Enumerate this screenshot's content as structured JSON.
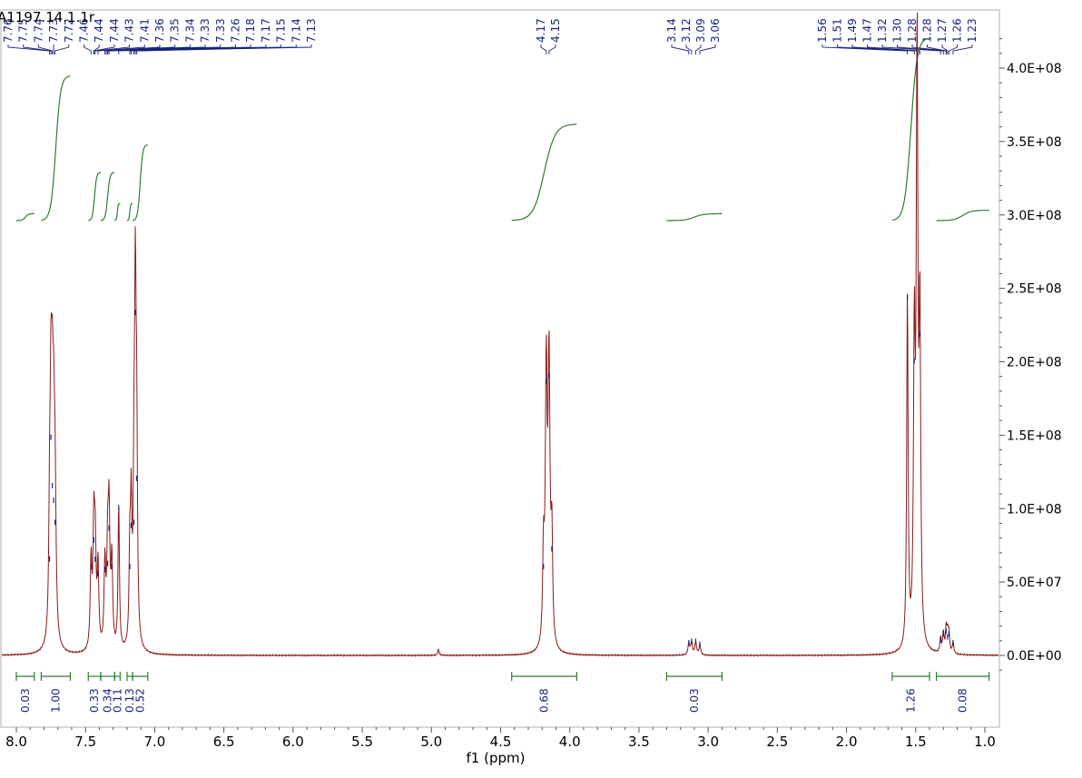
{
  "chart_data": {
    "type": "line",
    "title": "A1197.14.1.1r",
    "xlabel": "f1 (ppm)",
    "ylabel": "",
    "xlim": [
      8.1,
      0.9
    ],
    "ylim": [
      -20000000,
      430000000
    ],
    "x_ticks": [
      "8.0",
      "7.5",
      "7.0",
      "6.5",
      "6.0",
      "5.5",
      "5.0",
      "4.5",
      "4.0",
      "3.5",
      "3.0",
      "2.5",
      "2.0",
      "1.5",
      "1.0"
    ],
    "y_ticks": [
      "0.0E+00",
      "5.0E+07",
      "1.0E+08",
      "1.5E+08",
      "2.0E+08",
      "2.5E+08",
      "3.0E+08",
      "3.5E+08",
      "4.0E+08"
    ],
    "y_tick_values": [
      0,
      50000000,
      100000000,
      150000000,
      200000000,
      250000000,
      300000000,
      350000000,
      400000000
    ],
    "line_color": "#8b1a1a",
    "integral_color": "#2e7d32",
    "peak_label_color": "#1a237e",
    "peaks": [
      {
        "ppm": 7.76,
        "height": 65000000,
        "width": 0.006
      },
      {
        "ppm": 7.75,
        "height": 148000000,
        "width": 0.008
      },
      {
        "ppm": 7.74,
        "height": 115000000,
        "width": 0.008
      },
      {
        "ppm": 7.73,
        "height": 105000000,
        "width": 0.008
      },
      {
        "ppm": 7.72,
        "height": 90000000,
        "width": 0.008
      },
      {
        "ppm": 7.46,
        "height": 60000000,
        "width": 0.007
      },
      {
        "ppm": 7.44,
        "height": 78000000,
        "width": 0.007
      },
      {
        "ppm": 7.43,
        "height": 65000000,
        "width": 0.007
      },
      {
        "ppm": 7.41,
        "height": 55000000,
        "width": 0.007
      },
      {
        "ppm": 7.36,
        "height": 58000000,
        "width": 0.007
      },
      {
        "ppm": 7.34,
        "height": 62000000,
        "width": 0.007
      },
      {
        "ppm": 7.33,
        "height": 86000000,
        "width": 0.007
      },
      {
        "ppm": 7.31,
        "height": 60000000,
        "width": 0.007
      },
      {
        "ppm": 7.26,
        "height": 100000000,
        "width": 0.006
      },
      {
        "ppm": 7.18,
        "height": 60000000,
        "width": 0.006
      },
      {
        "ppm": 7.17,
        "height": 88000000,
        "width": 0.006
      },
      {
        "ppm": 7.15,
        "height": 90000000,
        "width": 0.006
      },
      {
        "ppm": 7.14,
        "height": 233000000,
        "width": 0.007
      },
      {
        "ppm": 7.13,
        "height": 120000000,
        "width": 0.006
      },
      {
        "ppm": 4.95,
        "height": 4000000,
        "width": 0.006
      },
      {
        "ppm": 4.19,
        "height": 60000000,
        "width": 0.007
      },
      {
        "ppm": 4.17,
        "height": 186000000,
        "width": 0.008
      },
      {
        "ppm": 4.15,
        "height": 190000000,
        "width": 0.008
      },
      {
        "ppm": 4.13,
        "height": 72000000,
        "width": 0.007
      },
      {
        "ppm": 3.14,
        "height": 8000000,
        "width": 0.007
      },
      {
        "ppm": 3.12,
        "height": 9000000,
        "width": 0.007
      },
      {
        "ppm": 3.09,
        "height": 9000000,
        "width": 0.007
      },
      {
        "ppm": 3.06,
        "height": 7000000,
        "width": 0.007
      },
      {
        "ppm": 1.56,
        "height": 243000000,
        "width": 0.006
      },
      {
        "ppm": 1.51,
        "height": 200000000,
        "width": 0.007
      },
      {
        "ppm": 1.49,
        "height": 402000000,
        "width": 0.007
      },
      {
        "ppm": 1.47,
        "height": 218000000,
        "width": 0.007
      },
      {
        "ppm": 1.32,
        "height": 10000000,
        "width": 0.006
      },
      {
        "ppm": 1.3,
        "height": 14000000,
        "width": 0.006
      },
      {
        "ppm": 1.28,
        "height": 16000000,
        "width": 0.006
      },
      {
        "ppm": 1.27,
        "height": 12000000,
        "width": 0.006
      },
      {
        "ppm": 1.26,
        "height": 14000000,
        "width": 0.006
      },
      {
        "ppm": 1.23,
        "height": 8000000,
        "width": 0.006
      }
    ],
    "peak_labels": [
      "7.76",
      "7.75",
      "7.74",
      "7.73",
      "7.72",
      "7.46",
      "7.44",
      "7.44",
      "7.43",
      "7.41",
      "7.36",
      "7.35",
      "7.34",
      "7.33",
      "7.33",
      "7.26",
      "7.18",
      "7.17",
      "7.15",
      "7.14",
      "7.13",
      "4.17",
      "4.15",
      "3.14",
      "3.12",
      "3.09",
      "3.06",
      "1.56",
      "1.51",
      "1.49",
      "1.47",
      "1.32",
      "1.30",
      "1.28",
      "1.28",
      "1.27",
      "1.26",
      "1.23"
    ],
    "peak_label_ppm": [
      7.76,
      7.75,
      7.74,
      7.73,
      7.72,
      7.46,
      7.44,
      7.44,
      7.43,
      7.41,
      7.36,
      7.35,
      7.34,
      7.33,
      7.33,
      7.26,
      7.18,
      7.17,
      7.15,
      7.14,
      7.13,
      4.17,
      4.15,
      3.14,
      3.12,
      3.09,
      3.06,
      1.56,
      1.51,
      1.49,
      1.47,
      1.32,
      1.3,
      1.28,
      1.28,
      1.27,
      1.26,
      1.23
    ],
    "integrals": [
      {
        "start": 8.0,
        "end": 7.87,
        "value": "0.03",
        "rise": 0.02
      },
      {
        "start": 7.82,
        "end": 7.61,
        "value": "1.00",
        "rise": 0.42
      },
      {
        "start": 7.48,
        "end": 7.39,
        "value": "0.33",
        "rise": 0.14
      },
      {
        "start": 7.39,
        "end": 7.29,
        "value": "0.34",
        "rise": 0.14
      },
      {
        "start": 7.29,
        "end": 7.25,
        "value": "0.11",
        "rise": 0.05
      },
      {
        "start": 7.2,
        "end": 7.16,
        "value": "0.13",
        "rise": 0.05
      },
      {
        "start": 7.16,
        "end": 7.05,
        "value": "0.52",
        "rise": 0.22
      },
      {
        "start": 4.42,
        "end": 3.95,
        "value": "0.68",
        "rise": 0.28
      },
      {
        "start": 3.3,
        "end": 2.9,
        "value": "0.03",
        "rise": 0.02
      },
      {
        "start": 1.67,
        "end": 1.4,
        "value": "1.26",
        "rise": 0.53
      },
      {
        "start": 1.35,
        "end": 0.97,
        "value": "0.08",
        "rise": 0.03
      }
    ]
  }
}
